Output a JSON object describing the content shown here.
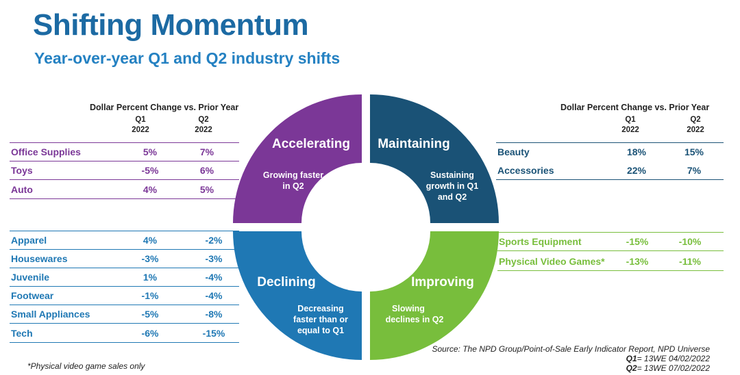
{
  "header": {
    "title": "Shifting Momentum",
    "subtitle": "Year-over-year Q1 and Q2 industry shifts"
  },
  "left_header": {
    "label": "Dollar Percent Change vs. Prior Year",
    "q1": "Q1",
    "q1_year": "2022",
    "q2": "Q2",
    "q2_year": "2022"
  },
  "right_header": {
    "label": "Dollar Percent Change vs. Prior Year",
    "q1": "Q1",
    "q1_year": "2022",
    "q2": "Q2",
    "q2_year": "2022"
  },
  "accelerating_rows": [
    {
      "label": "Office Supplies",
      "q1": "5%",
      "q2": "7%"
    },
    {
      "label": "Toys",
      "q1": "-5%",
      "q2": "6%"
    },
    {
      "label": "Auto",
      "q1": "4%",
      "q2": "5%"
    }
  ],
  "declining_rows": [
    {
      "label": "Apparel",
      "q1": "4%",
      "q2": "-2%"
    },
    {
      "label": "Housewares",
      "q1": "-3%",
      "q2": "-3%"
    },
    {
      "label": "Juvenile",
      "q1": "1%",
      "q2": "-4%"
    },
    {
      "label": "Footwear",
      "q1": "-1%",
      "q2": "-4%"
    },
    {
      "label": "Small Appliances",
      "q1": "-5%",
      "q2": "-8%"
    },
    {
      "label": "Tech",
      "q1": "-6%",
      "q2": "-15%"
    }
  ],
  "maintaining_rows": [
    {
      "label": "Beauty",
      "q1": "18%",
      "q2": "15%"
    },
    {
      "label": "Accessories",
      "q1": "22%",
      "q2": "7%"
    }
  ],
  "improving_rows": [
    {
      "label": "Sports Equipment",
      "q1": "-15%",
      "q2": "-10%"
    },
    {
      "label": "Physical Video Games*",
      "q1": "-13%",
      "q2": "-11%"
    }
  ],
  "quadrants": {
    "accelerating": {
      "name": "Accelerating",
      "desc1": "Growing faster",
      "desc2": "in Q2"
    },
    "maintaining": {
      "name": "Maintaining",
      "desc1": "Sustaining",
      "desc2": "growth in Q1",
      "desc3": "and Q2"
    },
    "declining": {
      "name": "Declining",
      "desc1": "Decreasing",
      "desc2": "faster than or",
      "desc3": "equal to Q1"
    },
    "improving": {
      "name": "Improving",
      "desc1": "Slowing",
      "desc2": "declines in Q2"
    }
  },
  "colors": {
    "accelerating": "#7b3797",
    "maintaining": "#1a5276",
    "declining": "#1f78b4",
    "improving": "#78be3c",
    "title": "#1c6aa3"
  },
  "footnote": "*Physical video game sales only",
  "source": {
    "line1": "Source: The NPD Group/Point-of-Sale Early Indicator Report, NPD Universe",
    "q1_label": "Q1",
    "q1_text": "= 13WE 04/02/2022",
    "q2_label": "Q2",
    "q2_text": "= 13WE 07/02/2022"
  }
}
